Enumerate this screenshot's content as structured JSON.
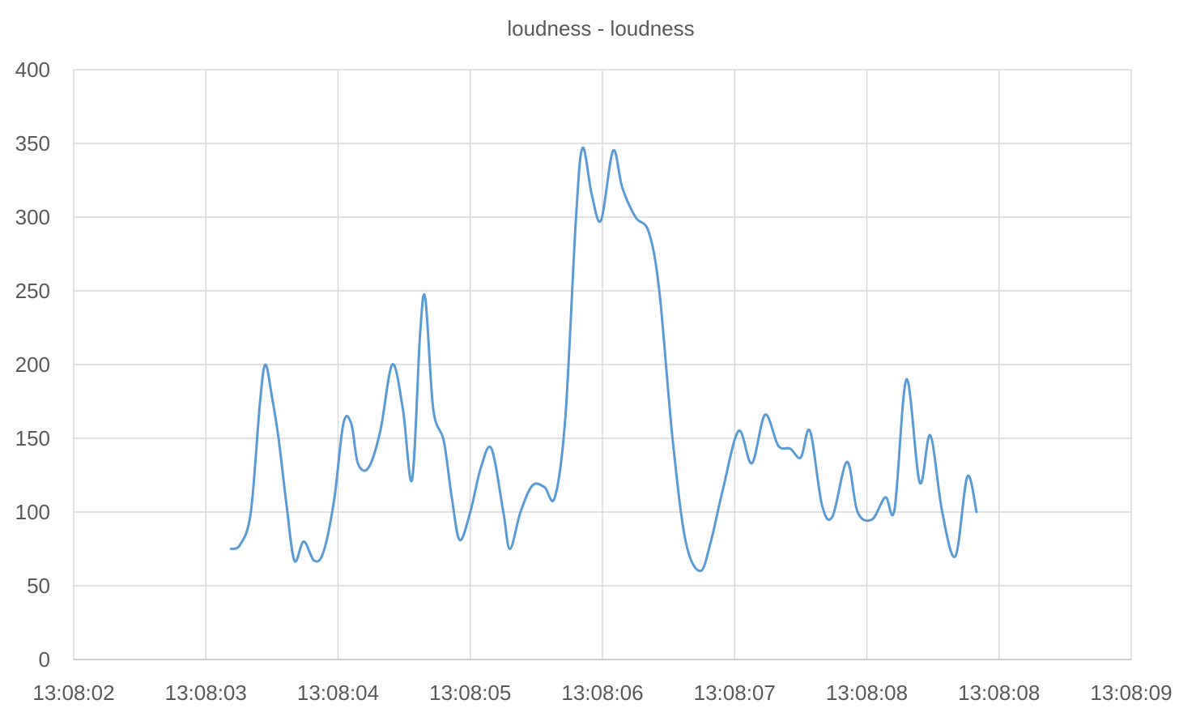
{
  "chart_data": {
    "type": "line",
    "title": "loudness - loudness",
    "xlabel": "",
    "ylabel": "",
    "ylim": [
      0,
      400
    ],
    "y_ticks": [
      0,
      50,
      100,
      150,
      200,
      250,
      300,
      350,
      400
    ],
    "x_unit": "seconds",
    "xlim": [
      0,
      8
    ],
    "x_tick_labels": [
      "13:08:02",
      "13:08:03",
      "13:08:04",
      "13:08:05",
      "13:08:06",
      "13:08:07",
      "13:08:08",
      "13:08:08",
      "13:08:09"
    ],
    "grid": true,
    "legend": "none",
    "series": [
      {
        "name": "",
        "color": "#5b9bd5",
        "points": [
          [
            1.19,
            75
          ],
          [
            1.26,
            78
          ],
          [
            1.34,
            100
          ],
          [
            1.41,
            175
          ],
          [
            1.45,
            200
          ],
          [
            1.5,
            178
          ],
          [
            1.55,
            150
          ],
          [
            1.61,
            105
          ],
          [
            1.67,
            67
          ],
          [
            1.74,
            80
          ],
          [
            1.82,
            67
          ],
          [
            1.89,
            73
          ],
          [
            1.97,
            108
          ],
          [
            2.04,
            160
          ],
          [
            2.1,
            160
          ],
          [
            2.15,
            133
          ],
          [
            2.23,
            130
          ],
          [
            2.32,
            155
          ],
          [
            2.41,
            200
          ],
          [
            2.49,
            170
          ],
          [
            2.56,
            122
          ],
          [
            2.62,
            220
          ],
          [
            2.66,
            245
          ],
          [
            2.72,
            170
          ],
          [
            2.8,
            148
          ],
          [
            2.86,
            110
          ],
          [
            2.92,
            81
          ],
          [
            3.0,
            100
          ],
          [
            3.08,
            130
          ],
          [
            3.16,
            143
          ],
          [
            3.25,
            100
          ],
          [
            3.3,
            75
          ],
          [
            3.38,
            100
          ],
          [
            3.47,
            118
          ],
          [
            3.56,
            117
          ],
          [
            3.64,
            110
          ],
          [
            3.72,
            165
          ],
          [
            3.8,
            300
          ],
          [
            3.85,
            347
          ],
          [
            3.92,
            315
          ],
          [
            3.99,
            298
          ],
          [
            4.08,
            345
          ],
          [
            4.15,
            320
          ],
          [
            4.25,
            300
          ],
          [
            4.35,
            290
          ],
          [
            4.43,
            250
          ],
          [
            4.53,
            150
          ],
          [
            4.63,
            80
          ],
          [
            4.74,
            60
          ],
          [
            4.82,
            80
          ],
          [
            4.91,
            115
          ],
          [
            5.03,
            155
          ],
          [
            5.13,
            133
          ],
          [
            5.23,
            166
          ],
          [
            5.33,
            145
          ],
          [
            5.42,
            143
          ],
          [
            5.5,
            137
          ],
          [
            5.57,
            155
          ],
          [
            5.66,
            105
          ],
          [
            5.74,
            97
          ],
          [
            5.85,
            134
          ],
          [
            5.93,
            100
          ],
          [
            6.04,
            95
          ],
          [
            6.14,
            110
          ],
          [
            6.21,
            102
          ],
          [
            6.3,
            190
          ],
          [
            6.4,
            120
          ],
          [
            6.48,
            152
          ],
          [
            6.57,
            100
          ],
          [
            6.67,
            70
          ],
          [
            6.76,
            124
          ],
          [
            6.83,
            100
          ]
        ]
      }
    ]
  }
}
